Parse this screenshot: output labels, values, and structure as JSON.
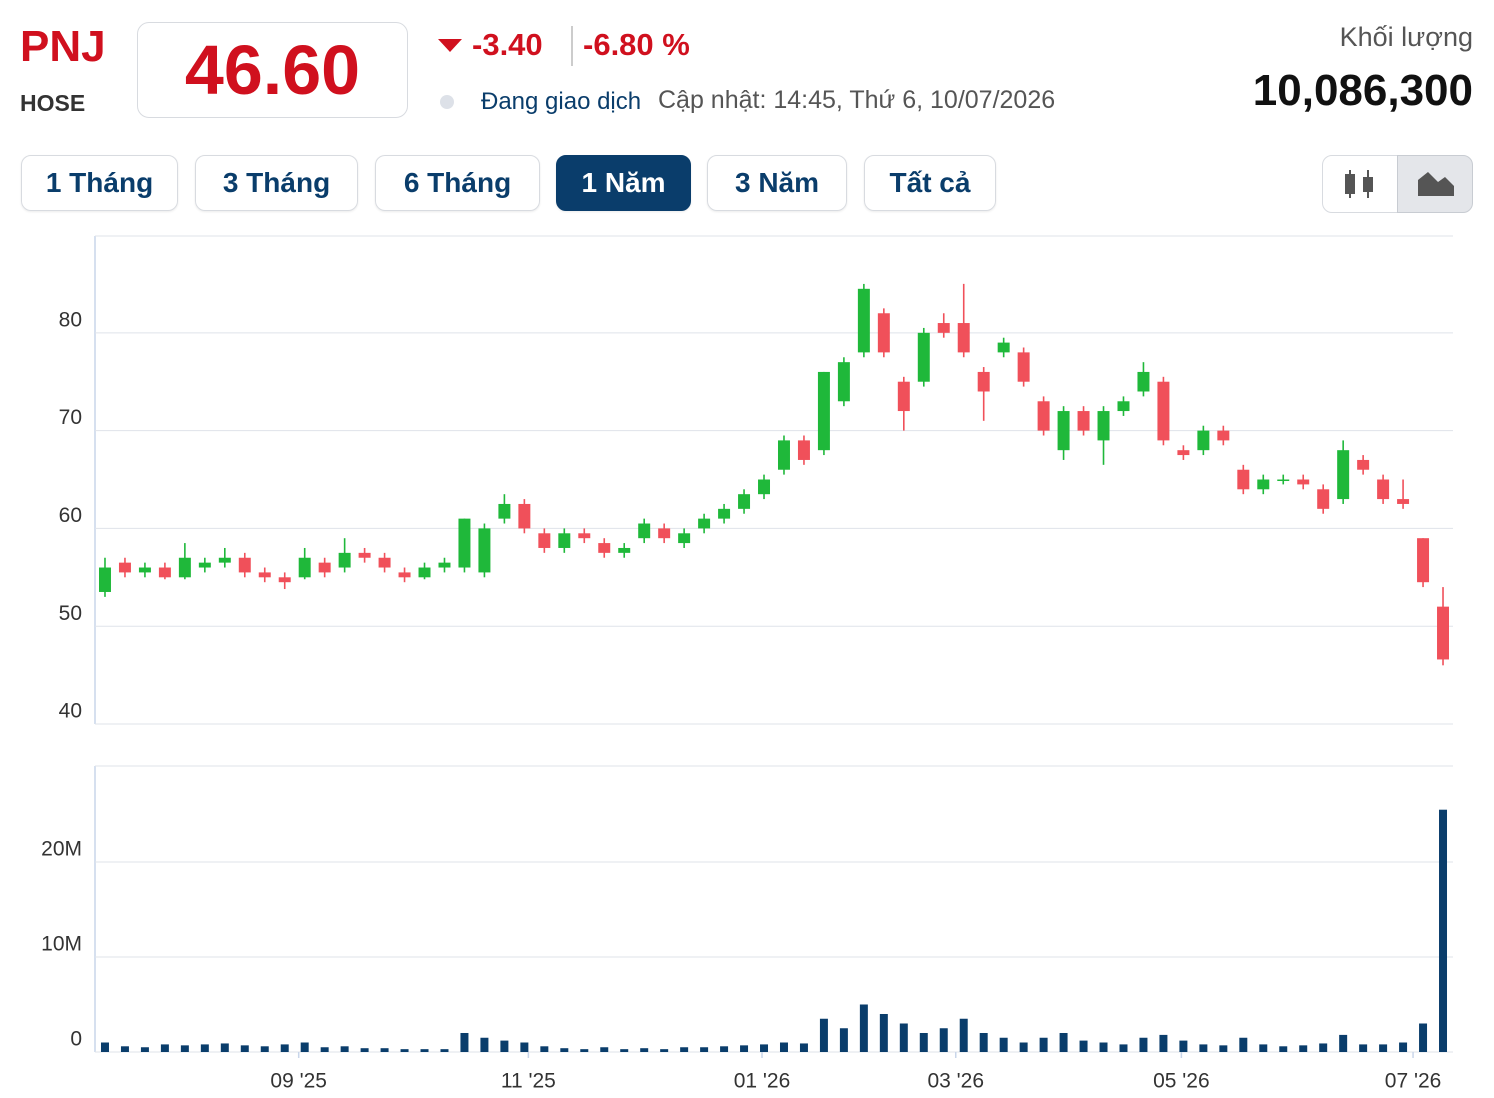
{
  "header": {
    "ticker": "PNJ",
    "exchange": "HOSE",
    "price": "46.60",
    "change": "-3.40",
    "change_pct": "-6.80 %",
    "status": "Đang giao dịch",
    "updated": "Cập nhật: 14:45, Thứ 6, 10/07/2026",
    "volume_label": "Khối lượng",
    "volume": "10,086,300"
  },
  "tabs": [
    "1 Tháng",
    "3 Tháng",
    "6 Tháng",
    "1 Năm",
    "3 Năm",
    "Tất cả"
  ],
  "chart_data": [
    {
      "type": "candlestick",
      "up_color": "#1fb83a",
      "down_color": "#f0505a",
      "xlim": [
        0,
        68
      ],
      "ylim": [
        40,
        89.9
      ],
      "yticks": [
        40,
        50,
        60,
        70,
        80
      ],
      "grid": true,
      "open": [
        53.5,
        56.5,
        55.5,
        56,
        55,
        56,
        56.5,
        57,
        55.5,
        55,
        55,
        56.5,
        56,
        57.5,
        57,
        55.5,
        55,
        56,
        56,
        55.5,
        61,
        62.5,
        59.5,
        58,
        59.5,
        58.5,
        57.5,
        59,
        60,
        58.5,
        60,
        61,
        62,
        63.5,
        66,
        69,
        68,
        73,
        78,
        82,
        75,
        75,
        81,
        81,
        76,
        78,
        78,
        73,
        68,
        72,
        69,
        72,
        74,
        75,
        68,
        68,
        70,
        66,
        64,
        65,
        65,
        64,
        63,
        67,
        65,
        63,
        59,
        52
      ],
      "high": [
        57,
        57,
        56.5,
        56.5,
        58.5,
        57,
        58,
        57.5,
        56,
        55.5,
        58,
        57,
        59,
        58,
        57.5,
        56,
        56.5,
        57,
        61,
        60.5,
        63.5,
        63,
        60,
        60,
        60,
        59,
        58.5,
        61,
        60.5,
        60,
        61.5,
        62.5,
        64,
        65.5,
        69.5,
        69.5,
        76,
        77.5,
        85,
        82.5,
        75.5,
        80.5,
        82,
        85,
        76.5,
        79.5,
        78.5,
        73.5,
        72.5,
        72.5,
        72.5,
        73.5,
        77,
        75.5,
        68.5,
        70.5,
        70.5,
        66.5,
        65.5,
        65.5,
        65.5,
        64.5,
        69,
        67.5,
        65.5,
        65,
        59,
        54
      ],
      "low": [
        53,
        55,
        55,
        54.8,
        54.8,
        55.5,
        56,
        55,
        54.5,
        53.8,
        54.8,
        55,
        55.5,
        56.5,
        55.5,
        54.5,
        54.8,
        55.5,
        55.5,
        55,
        60.5,
        59.5,
        57.5,
        57.5,
        58.5,
        57,
        57,
        58.5,
        58.5,
        58,
        59.5,
        60.5,
        61.5,
        63,
        65.5,
        66.5,
        67.5,
        72.5,
        77.5,
        77.5,
        70,
        74.5,
        79.5,
        77.5,
        71,
        77.5,
        74.5,
        69.5,
        67,
        69.5,
        66.5,
        71.5,
        73.5,
        68.5,
        67,
        67.5,
        68.5,
        63.5,
        63.5,
        64.5,
        64,
        61.5,
        62.5,
        65.5,
        62.5,
        62,
        54,
        46
      ],
      "close": [
        56,
        55.5,
        56,
        55,
        57,
        56.5,
        57,
        55.5,
        55,
        54.5,
        57,
        55.5,
        57.5,
        57,
        56,
        55,
        56,
        56.5,
        61,
        60,
        62.5,
        60,
        58,
        59.5,
        59,
        57.5,
        58,
        60.5,
        59,
        59.5,
        61,
        62,
        63.5,
        65,
        69,
        67,
        76,
        77,
        84.5,
        78,
        72,
        80,
        80,
        78,
        74,
        79,
        75,
        70,
        72,
        70,
        72,
        73,
        76,
        69,
        67.5,
        70,
        69,
        64,
        65,
        65,
        64.5,
        62,
        68,
        66,
        63,
        62.5,
        54.5,
        46.6
      ]
    },
    {
      "type": "bar",
      "color": "#0a3d6b",
      "xlim": [
        0,
        68
      ],
      "ylim": [
        0,
        30100000
      ],
      "yticks": [
        0,
        {
          "value": 10000000,
          "label": "10M"
        },
        {
          "value": 20000000,
          "label": "20M"
        }
      ],
      "grid": true,
      "xticks": [
        {
          "value": 10.2,
          "label": "09 '25"
        },
        {
          "value": 21.7,
          "label": "11 '25"
        },
        {
          "value": 33.4,
          "label": "01 '26"
        },
        {
          "value": 43.1,
          "label": "03 '26"
        },
        {
          "value": 54.4,
          "label": "05 '26"
        },
        {
          "value": 66,
          "label": "07 '26"
        }
      ],
      "values": [
        1000000,
        600000,
        500000,
        800000,
        700000,
        800000,
        900000,
        700000,
        600000,
        800000,
        1000000,
        500000,
        600000,
        400000,
        400000,
        300000,
        300000,
        300000,
        2000000,
        1500000,
        1200000,
        1000000,
        600000,
        400000,
        300000,
        500000,
        300000,
        400000,
        300000,
        500000,
        500000,
        600000,
        700000,
        800000,
        1000000,
        900000,
        3500000,
        2500000,
        5000000,
        4000000,
        3000000,
        2000000,
        2500000,
        3500000,
        2000000,
        1500000,
        1000000,
        1500000,
        2000000,
        1200000,
        1000000,
        800000,
        1500000,
        1800000,
        1200000,
        800000,
        700000,
        1500000,
        800000,
        600000,
        700000,
        900000,
        1800000,
        800000,
        800000,
        1000000,
        3000000,
        25500000
      ]
    }
  ]
}
